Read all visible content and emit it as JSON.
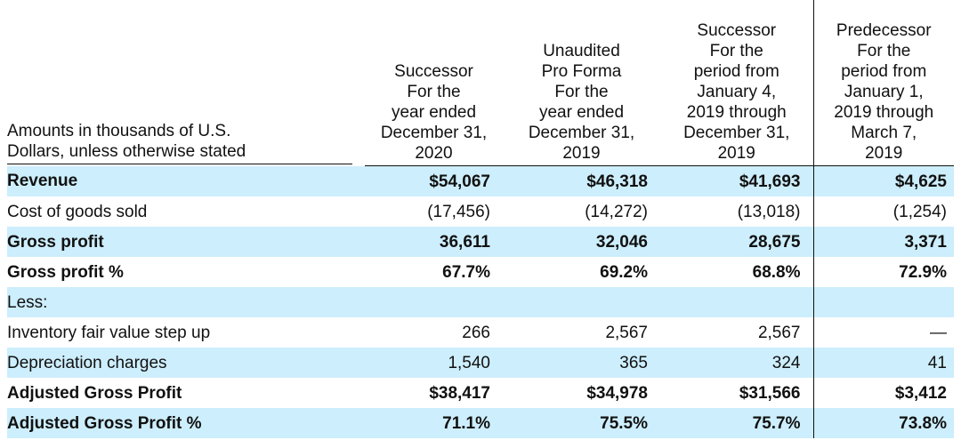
{
  "table": {
    "header": {
      "label_lines": [
        "Amounts in thousands of U.S.",
        "Dollars, unless otherwise stated"
      ],
      "columns": [
        {
          "lines": [
            "Successor",
            "For the",
            "year ended",
            "December 31,",
            "2020"
          ]
        },
        {
          "lines": [
            "Unaudited",
            "Pro Forma",
            "For the",
            "year ended",
            "December 31,",
            "2019"
          ]
        },
        {
          "lines": [
            "Successor",
            "For the",
            "period from",
            "January 4,",
            "2019 through",
            "December 31,",
            "2019"
          ]
        },
        {
          "lines": [
            "Predecessor",
            "For the",
            "period from",
            "January 1,",
            "2019 through",
            "March 7,",
            "2019"
          ]
        }
      ]
    },
    "rows": [
      {
        "label": "Revenue",
        "values": [
          "$54,067",
          "$46,318",
          "$41,693",
          "$4,625"
        ],
        "bold": true,
        "shaded": true
      },
      {
        "label": "Cost of goods sold",
        "values": [
          "(17,456)",
          "(14,272)",
          "(13,018)",
          "(1,254)"
        ],
        "bold": false,
        "shaded": false
      },
      {
        "label": "Gross profit",
        "values": [
          "36,611",
          "32,046",
          "28,675",
          "3,371"
        ],
        "bold": true,
        "shaded": true
      },
      {
        "label": "Gross profit %",
        "values": [
          "67.7%",
          "69.2%",
          "68.8%",
          "72.9%"
        ],
        "bold": true,
        "shaded": false
      },
      {
        "label": "Less:",
        "values": [
          "",
          "",
          "",
          ""
        ],
        "bold": false,
        "shaded": true
      },
      {
        "label": "Inventory fair value step up",
        "values": [
          "266",
          "2,567",
          "2,567",
          "—"
        ],
        "bold": false,
        "shaded": false
      },
      {
        "label": "Depreciation charges",
        "values": [
          "1,540",
          "365",
          "324",
          "41"
        ],
        "bold": false,
        "shaded": true
      },
      {
        "label": "Adjusted Gross Profit",
        "values": [
          "$38,417",
          "$34,978",
          "$31,566",
          "$3,412"
        ],
        "bold": true,
        "shaded": false
      },
      {
        "label": "Adjusted Gross Profit %",
        "values": [
          "71.1%",
          "75.5%",
          "75.7%",
          "73.8%"
        ],
        "bold": true,
        "shaded": true
      }
    ]
  },
  "colors": {
    "row_shade": "#cdeefc",
    "text": "#111111",
    "rule": "#111111"
  }
}
